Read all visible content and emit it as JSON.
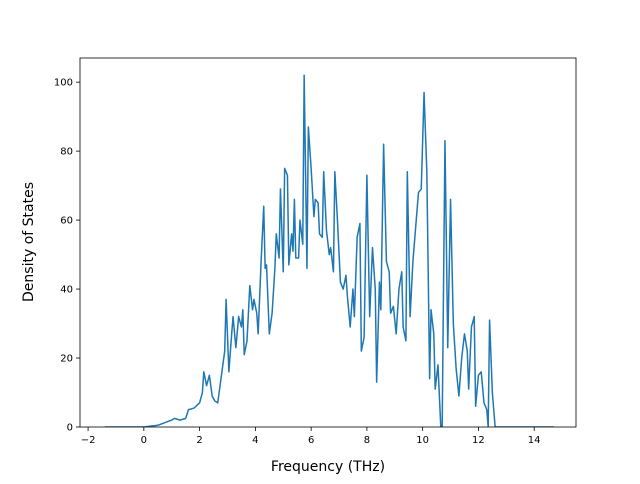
{
  "chart_data": {
    "type": "line",
    "xlabel": "Frequency (THz)",
    "ylabel": "Density of States",
    "x": [
      -1.4,
      0,
      0.5,
      1.0,
      1.1,
      1.3,
      1.5,
      1.6,
      1.8,
      2.0,
      2.1,
      2.15,
      2.25,
      2.35,
      2.45,
      2.55,
      2.65,
      2.75,
      2.9,
      2.95,
      3.05,
      3.15,
      3.2,
      3.3,
      3.4,
      3.5,
      3.55,
      3.6,
      3.7,
      3.8,
      3.9,
      3.95,
      4.05,
      4.1,
      4.2,
      4.3,
      4.35,
      4.4,
      4.5,
      4.6,
      4.7,
      4.75,
      4.85,
      4.9,
      5.0,
      5.05,
      5.15,
      5.2,
      5.3,
      5.35,
      5.4,
      5.45,
      5.55,
      5.6,
      5.7,
      5.75,
      5.85,
      5.9,
      6.0,
      6.1,
      6.15,
      6.25,
      6.3,
      6.4,
      6.45,
      6.55,
      6.65,
      6.7,
      6.8,
      6.85,
      6.95,
      7.05,
      7.15,
      7.25,
      7.3,
      7.4,
      7.5,
      7.55,
      7.65,
      7.75,
      7.8,
      7.9,
      8.0,
      8.1,
      8.2,
      8.3,
      8.35,
      8.45,
      8.5,
      8.6,
      8.7,
      8.8,
      8.85,
      8.95,
      9.05,
      9.15,
      9.25,
      9.3,
      9.4,
      9.45,
      9.55,
      9.65,
      9.75,
      9.85,
      9.95,
      10.05,
      10.15,
      10.25,
      10.3,
      10.4,
      10.45,
      10.55,
      10.65,
      10.7,
      10.8,
      10.85,
      10.9,
      11.0,
      11.1,
      11.2,
      11.3,
      11.4,
      11.5,
      11.6,
      11.65,
      11.75,
      11.85,
      11.9,
      12.0,
      12.1,
      12.2,
      12.3,
      12.35,
      12.4,
      12.5,
      12.6,
      14.7
    ],
    "series": [
      {
        "color": "#1f77b4",
        "values": [
          0,
          0,
          0.5,
          2,
          2.5,
          2,
          2.5,
          5,
          5.5,
          7,
          10,
          16,
          12,
          15,
          9,
          7.5,
          7,
          13,
          22,
          37,
          16,
          27,
          32,
          23,
          32,
          29,
          34,
          21,
          25,
          41,
          34,
          37,
          33,
          27,
          47,
          64,
          46,
          47,
          27,
          33,
          46,
          56,
          49,
          69,
          45,
          75,
          73,
          47,
          56,
          51,
          66,
          49,
          49,
          60,
          53,
          102,
          46,
          87,
          75,
          61,
          66,
          65,
          56,
          55,
          74,
          57,
          50,
          52,
          45,
          74,
          59,
          42,
          40,
          44,
          38,
          29,
          40,
          32,
          55,
          59,
          22,
          26,
          73,
          32,
          52,
          40,
          13,
          42,
          34,
          82,
          48,
          45,
          33,
          35,
          27,
          40,
          45,
          29,
          25,
          74,
          32,
          48,
          58,
          68,
          69,
          97,
          74,
          14,
          34,
          27,
          11,
          18,
          0,
          0,
          83,
          54,
          23,
          66,
          30,
          17,
          9,
          20,
          27,
          22,
          11,
          29,
          32,
          6,
          15,
          16,
          7,
          5,
          0,
          31,
          10,
          0,
          0
        ]
      }
    ],
    "xlim": [
      -2.29,
      15.5
    ],
    "xticks": [
      {
        "value": -2,
        "label": "−2"
      },
      0,
      2,
      4,
      6,
      8,
      10,
      12,
      14
    ],
    "ylim": [
      0,
      107
    ],
    "yticks": [
      0,
      20,
      40,
      60,
      80,
      100
    ]
  }
}
